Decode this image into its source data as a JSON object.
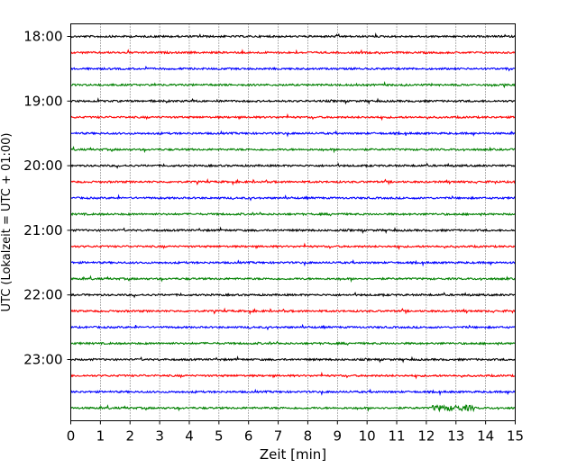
{
  "chart_data": {
    "type": "line",
    "subtype": "helicorder",
    "xlabel": "Zeit  [min]",
    "ylabel": "UTC (Lokalzeit = UTC + 01:00)",
    "xlim": [
      0,
      15
    ],
    "x_ticks": [
      "0",
      "1",
      "2",
      "3",
      "4",
      "5",
      "6",
      "7",
      "8",
      "9",
      "10",
      "11",
      "12",
      "13",
      "14",
      "15"
    ],
    "y_ticks": [
      "18:00",
      "19:00",
      "20:00",
      "21:00",
      "22:00",
      "23:00"
    ],
    "trace_interval_minutes": 15,
    "trace_start_times": [
      "18:00",
      "18:15",
      "18:30",
      "18:45",
      "19:00",
      "19:15",
      "19:30",
      "19:45",
      "20:00",
      "20:15",
      "20:30",
      "20:45",
      "21:00",
      "21:15",
      "21:30",
      "21:45",
      "22:00",
      "22:15",
      "22:30",
      "22:45",
      "23:00",
      "23:15",
      "23:30",
      "23:45"
    ],
    "trace_color_cycle": [
      "#000000",
      "#ff0000",
      "#0000ff",
      "#008000"
    ],
    "grid": "vertical dotted lines at each minute",
    "notable_event": {
      "trace": "23:45",
      "x_minutes": [
        12.2,
        13.6
      ]
    }
  }
}
